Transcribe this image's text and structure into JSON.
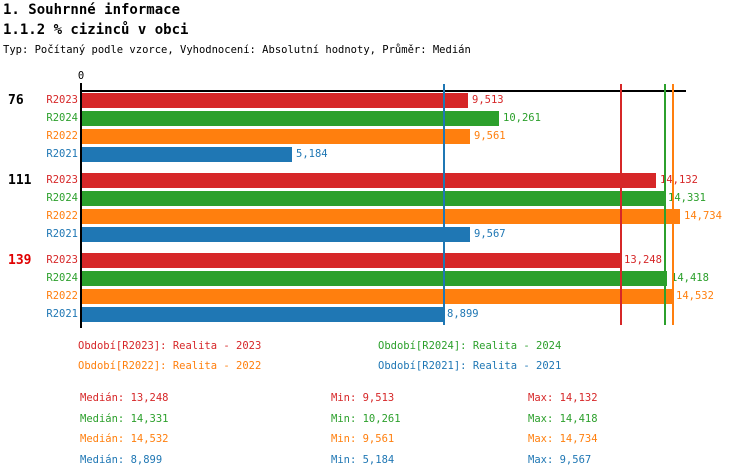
{
  "header": {
    "title1": "1. Souhrnné informace",
    "title2": "1.1.2 % cizinců v obci",
    "subtitle": "Typ: Počítaný podle vzorce, Vyhodnocení: Absolutní hodnoty, Průměr: Medián"
  },
  "colors": {
    "R2023": "#d62728",
    "R2024": "#2ca02c",
    "R2022": "#ff7f0e",
    "R2021": "#1f77b4",
    "axis": "#000000",
    "group3_label": "#e00000"
  },
  "chart_data": {
    "type": "bar",
    "orientation": "horizontal",
    "title": "1.1.2 % cizinců v obci",
    "x_origin_label": "0",
    "x_axis_max": 14877,
    "grid": false,
    "series_names": [
      "R2023",
      "R2024",
      "R2022",
      "R2021"
    ],
    "groups": [
      {
        "label": "76",
        "label_color": "#000000",
        "bars": [
          {
            "series": "R2023",
            "value": 9513,
            "display": "9,513"
          },
          {
            "series": "R2024",
            "value": 10261,
            "display": "10,261"
          },
          {
            "series": "R2022",
            "value": 9561,
            "display": "9,561"
          },
          {
            "series": "R2021",
            "value": 5184,
            "display": "5,184"
          }
        ]
      },
      {
        "label": "111",
        "label_color": "#000000",
        "bars": [
          {
            "series": "R2023",
            "value": 14132,
            "display": "14,132"
          },
          {
            "series": "R2024",
            "value": 14331,
            "display": "14,331"
          },
          {
            "series": "R2022",
            "value": 14734,
            "display": "14,734"
          },
          {
            "series": "R2021",
            "value": 9567,
            "display": "9,567"
          }
        ]
      },
      {
        "label": "139",
        "label_color": "#e00000",
        "bars": [
          {
            "series": "R2023",
            "value": 13248,
            "display": "13,248"
          },
          {
            "series": "R2024",
            "value": 14418,
            "display": "14,418"
          },
          {
            "series": "R2022",
            "value": 14532,
            "display": "14,532"
          },
          {
            "series": "R2021",
            "value": 8899,
            "display": "8,899"
          }
        ]
      }
    ],
    "median_lines": [
      {
        "series": "R2021",
        "value": 8899
      },
      {
        "series": "R2023",
        "value": 13248
      },
      {
        "series": "R2024",
        "value": 14331
      },
      {
        "series": "R2022",
        "value": 14532
      }
    ]
  },
  "legend": [
    {
      "series": "R2023",
      "label": "Období[R2023]: Realita - 2023"
    },
    {
      "series": "R2024",
      "label": "Období[R2024]: Realita - 2024"
    },
    {
      "series": "R2022",
      "label": "Období[R2022]: Realita - 2022"
    },
    {
      "series": "R2021",
      "label": "Období[R2021]: Realita - 2021"
    }
  ],
  "stats": [
    {
      "series": "R2023",
      "median": "Medián: 13,248",
      "min": "Min: 9,513",
      "max": "Max: 14,132"
    },
    {
      "series": "R2024",
      "median": "Medián: 14,331",
      "min": "Min: 10,261",
      "max": "Max: 14,418"
    },
    {
      "series": "R2022",
      "median": "Medián: 14,532",
      "min": "Min: 9,561",
      "max": "Max: 14,734"
    },
    {
      "series": "R2021",
      "median": "Medián: 8,899",
      "min": "Min: 5,184",
      "max": "Max: 9,567"
    }
  ]
}
